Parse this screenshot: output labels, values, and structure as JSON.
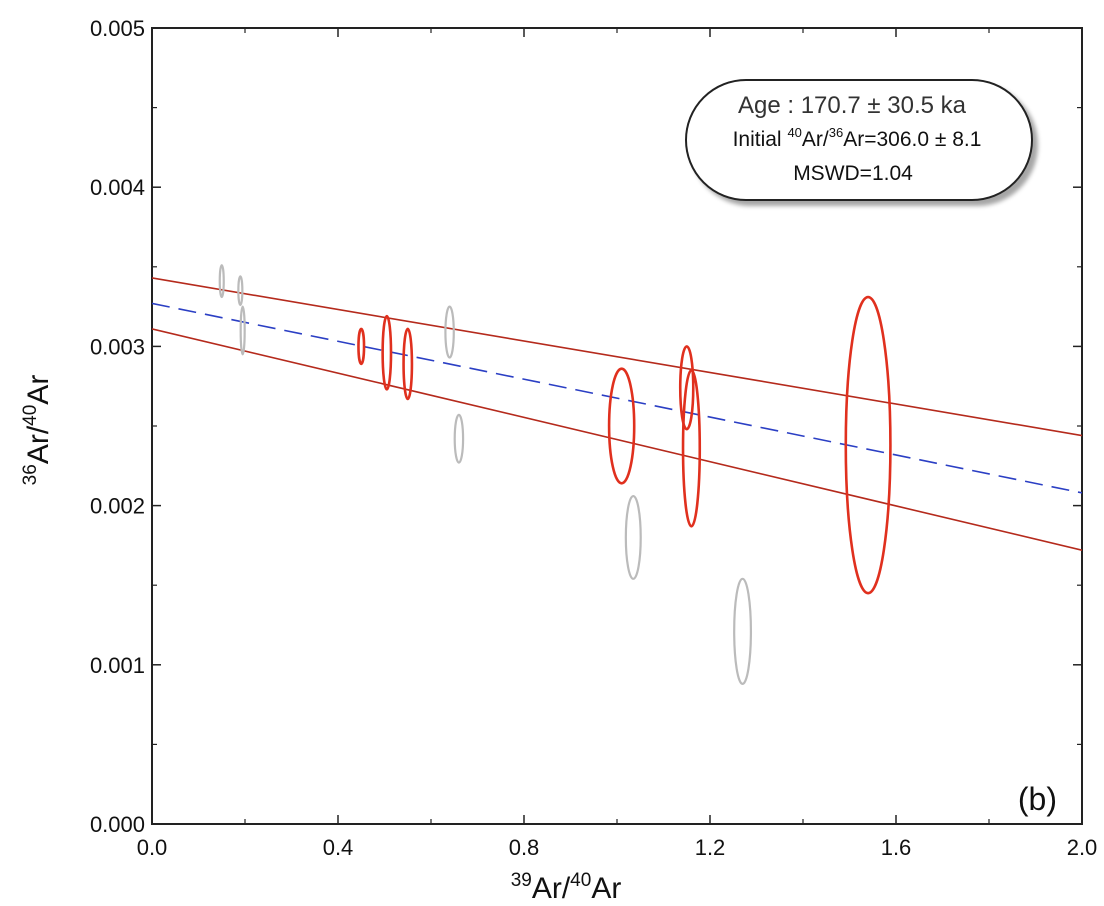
{
  "chart_data": {
    "type": "scatter",
    "title": "",
    "xlabel": {
      "sup": "39",
      "base1": "Ar/",
      "sup2": "40",
      "base2": "Ar"
    },
    "ylabel": {
      "sup": "36",
      "base1": "Ar/",
      "sup2": "40",
      "base2": "Ar"
    },
    "xlim": [
      0.0,
      2.0
    ],
    "ylim": [
      0.0,
      0.005
    ],
    "x_ticks": [
      "0.0",
      "0.4",
      "0.8",
      "1.2",
      "1.6",
      "2.0"
    ],
    "y_ticks": [
      "0.000",
      "0.001",
      "0.002",
      "0.003",
      "0.004",
      "0.005"
    ],
    "grid": false,
    "panel_label": "(b)",
    "info_box": {
      "age": "Age : 170.7 ± 30.5 ka",
      "initial_prefix": "Initial ",
      "initial_sup1": "40",
      "initial_mid": "Ar/",
      "initial_sup2": "36",
      "initial_suffix": "Ar=306.0 ± 8.1",
      "mswd": "MSWD=1.04"
    },
    "colors": {
      "included": "#e0301e",
      "excluded": "#bbbbbb",
      "regression": "#2b3fc4",
      "envelope": "#b52a1c",
      "axis": "#222222"
    },
    "regression_line": {
      "x": [
        0.0,
        2.0
      ],
      "y": [
        0.00327,
        0.00208
      ]
    },
    "envelope_upper": {
      "x": [
        0.0,
        2.0
      ],
      "y": [
        0.00343,
        0.00244
      ]
    },
    "envelope_lower": {
      "x": [
        0.0,
        2.0
      ],
      "y": [
        0.00311,
        0.00172
      ]
    },
    "series": [
      {
        "group": "included",
        "points": [
          {
            "x": 0.45,
            "y": 0.003,
            "sx": 0.006,
            "sy": 0.00011
          },
          {
            "x": 0.505,
            "y": 0.00296,
            "sx": 0.009,
            "sy": 0.00023
          },
          {
            "x": 0.55,
            "y": 0.00289,
            "sx": 0.009,
            "sy": 0.00022
          },
          {
            "x": 1.01,
            "y": 0.0025,
            "sx": 0.027,
            "sy": 0.00036
          },
          {
            "x": 1.15,
            "y": 0.00274,
            "sx": 0.014,
            "sy": 0.00026
          },
          {
            "x": 1.16,
            "y": 0.00236,
            "sx": 0.018,
            "sy": 0.00049
          },
          {
            "x": 1.54,
            "y": 0.00238,
            "sx": 0.048,
            "sy": 0.00093
          }
        ]
      },
      {
        "group": "excluded",
        "points": [
          {
            "x": 0.15,
            "y": 0.00341,
            "sx": 0.003,
            "sy": 0.0001
          },
          {
            "x": 0.19,
            "y": 0.00335,
            "sx": 0.003,
            "sy": 9e-05
          },
          {
            "x": 0.195,
            "y": 0.0031,
            "sx": 0.004,
            "sy": 0.00015
          },
          {
            "x": 0.64,
            "y": 0.00309,
            "sx": 0.009,
            "sy": 0.00016
          },
          {
            "x": 0.66,
            "y": 0.00242,
            "sx": 0.009,
            "sy": 0.00015
          },
          {
            "x": 1.035,
            "y": 0.0018,
            "sx": 0.016,
            "sy": 0.00026
          },
          {
            "x": 1.27,
            "y": 0.00121,
            "sx": 0.018,
            "sy": 0.00033
          }
        ]
      }
    ]
  }
}
